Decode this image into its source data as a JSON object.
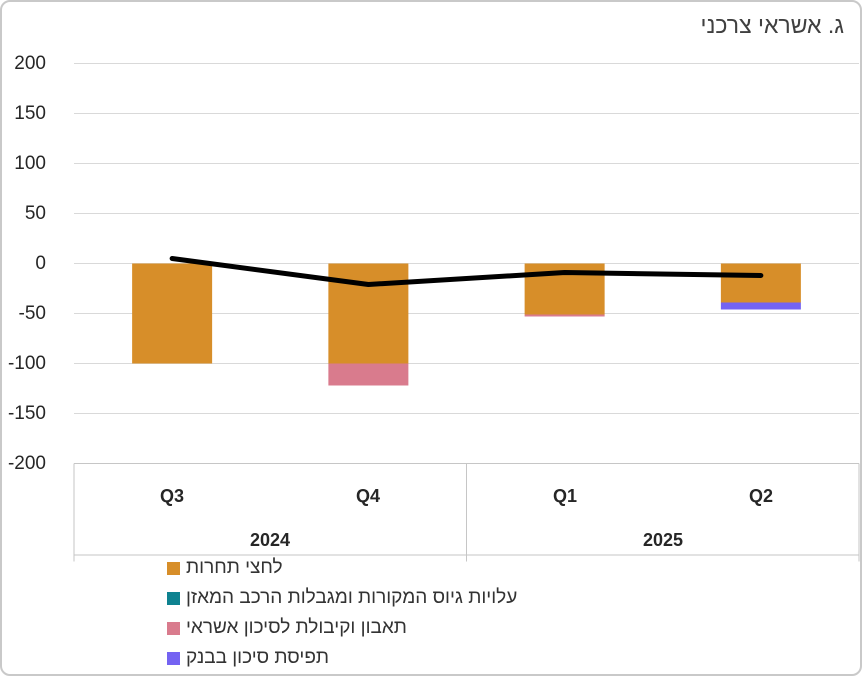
{
  "chart_data": {
    "type": "bar",
    "subtype": "stacked-negative-bars-with-line-overlay",
    "title": "ג. אשראי צרכני",
    "categories": [
      "Q3",
      "Q4",
      "Q1",
      "Q2"
    ],
    "year_groups": [
      {
        "label": "2024",
        "categories": [
          "Q3",
          "Q4"
        ]
      },
      {
        "label": "2025",
        "categories": [
          "Q1",
          "Q2"
        ]
      }
    ],
    "yticks": [
      200,
      150,
      100,
      50,
      0,
      -50,
      -100,
      -150,
      -200
    ],
    "ylim": [
      -200,
      200
    ],
    "grid": "horizontal",
    "legend_position": "bottom-left",
    "bar_series": [
      {
        "name": "לחצי תחרות",
        "color": "#D78E29",
        "values": [
          -100,
          -100,
          -51,
          -39
        ]
      },
      {
        "name": "עלויות גיוס המקורות ומגבלות הרכב המאזן",
        "color": "#0E8290",
        "values": [
          0,
          0,
          0,
          0
        ]
      },
      {
        "name": "תאבון וקיבולת לסיכון אשראי",
        "color": "#D97B8D",
        "values": [
          0,
          -22,
          -2,
          0
        ]
      },
      {
        "name": "תפיסת סיכון בבנק",
        "color": "#7463F2",
        "values": [
          0,
          0,
          0,
          -7
        ]
      }
    ],
    "line_series": {
      "color": "#000000",
      "values": [
        5,
        -21,
        -9,
        -12
      ]
    }
  },
  "style_colors": {
    "grid": "#D9D9D9",
    "axis_border": "#C6C6C6",
    "text": "#262626",
    "title_text": "#404040",
    "card_border": "#C9C9C9",
    "background": "#FFFFFF"
  }
}
